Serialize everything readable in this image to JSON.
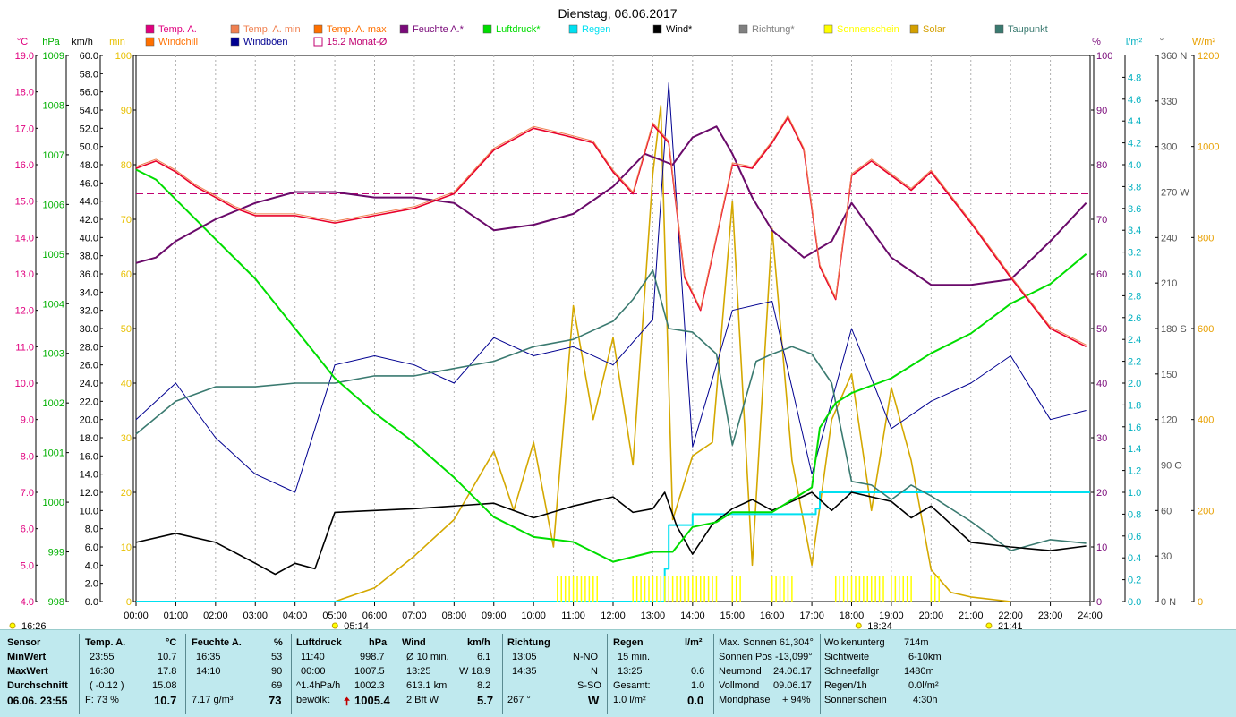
{
  "chart_data": {
    "type": "line",
    "title": "Dienstag, 06.06.2017",
    "x_ticks": [
      "00:00",
      "01:00",
      "02:00",
      "03:00",
      "04:00",
      "05:00",
      "06:00",
      "07:00",
      "08:00",
      "09:00",
      "10:00",
      "11:00",
      "12:00",
      "13:00",
      "14:00",
      "15:00",
      "16:00",
      "17:00",
      "18:00",
      "19:00",
      "20:00",
      "21:00",
      "22:00",
      "23:00",
      "24:00"
    ],
    "axes": {
      "temp_c": {
        "label": "°C",
        "color": "#e0007f",
        "range": [
          4.0,
          19.0
        ],
        "ticks": [
          "19.0",
          "18.0",
          "17.0",
          "16.0",
          "15.0",
          "14.0",
          "13.0",
          "12.0",
          "11.0",
          "10.0",
          "9.0",
          "8.0",
          "7.0",
          "6.0",
          "5.0",
          "4.0"
        ]
      },
      "pressure_hpa": {
        "label": "hPa",
        "color": "#00b000",
        "range": [
          998,
          1009
        ],
        "ticks": [
          "1009",
          "1008",
          "1007",
          "1006",
          "1005",
          "1004",
          "1003",
          "1002",
          "1001",
          "1000",
          "999",
          "998"
        ]
      },
      "wind_kmh": {
        "label": "km/h",
        "color": "#000000",
        "range": [
          0,
          60
        ],
        "ticks": [
          "60.0",
          "58.0",
          "56.0",
          "54.0",
          "52.0",
          "50.0",
          "48.0",
          "46.0",
          "44.0",
          "42.0",
          "40.0",
          "38.0",
          "36.0",
          "34.0",
          "32.0",
          "30.0",
          "28.0",
          "26.0",
          "24.0",
          "22.0",
          "20.0",
          "18.0",
          "16.0",
          "14.0",
          "12.0",
          "10.0",
          "8.0",
          "6.0",
          "4.0",
          "2.0",
          "0.0"
        ]
      },
      "min": {
        "label": "min",
        "color": "#e8c000",
        "range": [
          0,
          100
        ],
        "ticks": [
          "100",
          "90",
          "80",
          "70",
          "60",
          "50",
          "40",
          "30",
          "20",
          "10",
          "0"
        ]
      },
      "humidity_pct": {
        "label": "%",
        "color": "#7a0a7a",
        "range": [
          0,
          100
        ],
        "ticks": [
          "100",
          "90",
          "80",
          "70",
          "60",
          "50",
          "40",
          "30",
          "20",
          "10",
          "0"
        ]
      },
      "rain_lm2": {
        "label": "l/m²",
        "color": "#00b0c0",
        "range": [
          0,
          5.0
        ],
        "ticks": [
          "4.8",
          "4.6",
          "4.4",
          "4.2",
          "4.0",
          "3.8",
          "3.6",
          "3.4",
          "3.2",
          "3.0",
          "2.8",
          "2.6",
          "2.4",
          "2.2",
          "2.0",
          "1.8",
          "1.6",
          "1.4",
          "1.2",
          "1.0",
          "0.8",
          "0.6",
          "0.4",
          "0.2",
          "0.0"
        ]
      },
      "direction_deg": {
        "label": "°",
        "color": "#555555",
        "range": [
          0,
          360
        ],
        "ticks": [
          "360 N",
          "330",
          "300",
          "270 W",
          "240",
          "210",
          "180 S",
          "150",
          "120",
          "90 O",
          "60",
          "30",
          "0 N"
        ]
      },
      "solar_wm2": {
        "label": "W/m²",
        "color": "#e8a000",
        "range": [
          0,
          1200
        ],
        "ticks": [
          "1200",
          "1000",
          "800",
          "600",
          "400",
          "200",
          "0"
        ]
      }
    },
    "legend": [
      {
        "name": "Temp. A.",
        "color": "#e0007f",
        "style": "fill"
      },
      {
        "name": "Temp. A. min",
        "color": "#f08050",
        "style": "fill"
      },
      {
        "name": "Temp. A. max",
        "color": "#ff7000",
        "style": "fill"
      },
      {
        "name": "Feuchte A.*",
        "color": "#7a0a7a",
        "style": "fill"
      },
      {
        "name": "Luftdruck*",
        "color": "#00dd00",
        "style": "fill"
      },
      {
        "name": "Regen",
        "color": "#00e0f0",
        "style": "fill"
      },
      {
        "name": "Wind*",
        "color": "#000000",
        "style": "fill"
      },
      {
        "name": "Richtung*",
        "color": "#808080",
        "style": "fill"
      },
      {
        "name": "Sonnenschein",
        "color": "#ffff00",
        "style": "fill"
      },
      {
        "name": "Solar",
        "color": "#d4a000",
        "style": "fill"
      },
      {
        "name": "Taupunkt",
        "color": "#3a7a70",
        "style": "fill"
      },
      {
        "name": "Windchill",
        "color": "#ff7000",
        "style": "fill"
      },
      {
        "name": "Windböen",
        "color": "#000090",
        "style": "fill"
      },
      {
        "name": "15.2 Monat-Ø",
        "color": "#c00070",
        "style": "hollow"
      }
    ],
    "reference_lines": [
      {
        "name": "15.2 Monat-Ø",
        "value": 15.2,
        "unit": "°C"
      }
    ],
    "series": [
      {
        "name": "Temp. A.",
        "unit": "°C",
        "x": [
          0,
          0.5,
          1,
          1.5,
          2,
          2.5,
          3,
          4,
          5,
          6,
          7,
          8,
          9,
          10,
          10.8,
          11.5,
          12,
          12.5,
          13,
          13.4,
          13.8,
          14.2,
          14.6,
          15,
          15.5,
          16,
          16.4,
          16.8,
          17.2,
          17.6,
          18,
          18.5,
          19,
          19.5,
          20,
          21,
          22,
          23,
          23.9
        ],
        "values": [
          15.9,
          16.1,
          15.8,
          15.4,
          15.1,
          14.8,
          14.6,
          14.6,
          14.4,
          14.6,
          14.8,
          15.2,
          16.4,
          17.0,
          16.8,
          16.6,
          15.8,
          15.2,
          17.1,
          16.6,
          12.9,
          12.0,
          14.0,
          16.0,
          15.9,
          16.6,
          17.3,
          16.4,
          13.2,
          12.3,
          15.7,
          16.1,
          15.7,
          15.3,
          15.8,
          14.4,
          12.9,
          11.5,
          11.0
        ]
      },
      {
        "name": "Feuchte A.*",
        "unit": "%",
        "x": [
          0,
          0.5,
          1,
          2,
          3,
          4,
          5,
          6,
          7,
          8,
          9,
          10,
          11,
          12,
          12.8,
          13.5,
          14,
          14.6,
          15,
          15.5,
          16,
          16.8,
          17.5,
          18,
          19,
          20,
          21,
          22,
          23,
          23.9
        ],
        "values": [
          62,
          63,
          66,
          70,
          73,
          75,
          75,
          74,
          74,
          73,
          68,
          69,
          71,
          76,
          82,
          80,
          85,
          87,
          82,
          74,
          68,
          63,
          66,
          73,
          63,
          58,
          58,
          59,
          66,
          73
        ]
      },
      {
        "name": "Luftdruck*",
        "unit": "hPa",
        "x": [
          0,
          0.5,
          1,
          2,
          3,
          4,
          5,
          6,
          7,
          8,
          9,
          10,
          11,
          12,
          13,
          13.5,
          14,
          14.6,
          15,
          16,
          17,
          17.2,
          17.6,
          18,
          19,
          20,
          21,
          22,
          23,
          23.9
        ],
        "values": [
          1006.7,
          1006.5,
          1006.1,
          1005.3,
          1004.5,
          1003.5,
          1002.5,
          1001.8,
          1001.2,
          1000.5,
          999.7,
          999.3,
          999.2,
          998.8,
          999.0,
          999.0,
          999.5,
          999.6,
          999.8,
          999.8,
          1000.3,
          1001.5,
          1002.0,
          1002.2,
          1002.5,
          1003.0,
          1003.4,
          1004.0,
          1004.4,
          1005.0
        ]
      },
      {
        "name": "Wind*",
        "unit": "km/h",
        "x": [
          0,
          1,
          2,
          3,
          3.5,
          4,
          4.5,
          5,
          6,
          7,
          8,
          9,
          10,
          11,
          12,
          12.5,
          13,
          13.3,
          13.6,
          14,
          14.5,
          15,
          15.5,
          16,
          16.5,
          17,
          17.5,
          18,
          19,
          19.5,
          20,
          21,
          22,
          23,
          23.9
        ],
        "values": [
          6.5,
          7.5,
          6.5,
          4.2,
          3.0,
          4.2,
          3.6,
          9.8,
          10.0,
          10.2,
          10.5,
          10.8,
          9.2,
          10.5,
          11.5,
          9.8,
          10.2,
          12.0,
          8.3,
          5.2,
          8.5,
          10.2,
          11.2,
          10.0,
          11.0,
          12.0,
          10.0,
          12.0,
          11.0,
          9.2,
          10.5,
          6.5,
          6.0,
          5.6,
          6.1
        ]
      },
      {
        "name": "Taupunkt",
        "unit": "°C",
        "x": [
          0,
          1,
          2,
          3,
          4,
          5,
          6,
          7,
          8,
          9,
          10,
          11,
          12,
          12.5,
          13,
          13.4,
          14,
          14.6,
          15,
          15.6,
          16,
          16.5,
          17,
          17.5,
          18,
          18.5,
          19,
          19.5,
          20,
          21,
          22,
          23,
          23.9
        ],
        "values": [
          8.6,
          9.5,
          9.9,
          9.9,
          10.0,
          10.0,
          10.2,
          10.2,
          10.4,
          10.6,
          11.0,
          11.2,
          11.7,
          12.3,
          13.1,
          11.5,
          11.4,
          10.8,
          8.3,
          10.6,
          10.8,
          11.0,
          10.8,
          10.0,
          7.3,
          7.2,
          6.8,
          7.2,
          6.9,
          6.2,
          5.4,
          5.7,
          5.6
        ]
      },
      {
        "name": "Windböen",
        "unit": "km/h",
        "x": [
          0,
          1,
          2,
          3,
          4,
          5,
          6,
          7,
          8,
          9,
          10,
          11,
          12,
          13,
          13.4,
          14,
          15,
          16,
          17,
          18,
          19,
          20,
          21,
          22,
          23,
          23.9
        ],
        "values": [
          20,
          24,
          18,
          14,
          12,
          26,
          27,
          26,
          24,
          29,
          27,
          28,
          26,
          31,
          57,
          17,
          32,
          33,
          14,
          30,
          19,
          22,
          24,
          27,
          20,
          21
        ]
      },
      {
        "name": "Solar",
        "unit": "W/m²",
        "x": [
          0,
          5,
          6,
          7,
          8,
          9,
          9.5,
          10,
          10.5,
          11,
          11.5,
          12,
          12.5,
          13,
          13.2,
          13.5,
          14,
          14.5,
          15,
          15.5,
          16,
          16.5,
          17,
          17.5,
          18,
          18.5,
          19,
          19.5,
          20,
          20.5,
          21,
          22
        ],
        "values": [
          0,
          0,
          30,
          100,
          180,
          330,
          200,
          350,
          120,
          650,
          400,
          580,
          300,
          940,
          1090,
          180,
          320,
          350,
          880,
          80,
          820,
          310,
          80,
          400,
          500,
          200,
          470,
          310,
          70,
          20,
          10,
          0
        ]
      },
      {
        "name": "Regen",
        "unit": "l/m²",
        "x": [
          0,
          13.2,
          13.3,
          13.4,
          14.0,
          17.0,
          17.1,
          17.2,
          18.0,
          24.0
        ],
        "values": [
          0,
          0,
          0.3,
          0.7,
          0.8,
          0.8,
          0.85,
          1.0,
          1.0,
          1.0
        ]
      }
    ],
    "markers": [
      {
        "label": "05:14",
        "time": 5.23
      },
      {
        "label": "18:24",
        "time": 18.4
      },
      {
        "label": "21:41",
        "time": 21.68
      },
      {
        "label": "16:26",
        "time": 16.43
      }
    ]
  },
  "panel": {
    "headers": {
      "sensor": "Sensor",
      "temp": "Temp. A.",
      "temp_unit": "°C",
      "feuchte": "Feuchte A.",
      "feuchte_unit": "%",
      "luftdruck": "Luftdruck",
      "luftdruck_unit": "hPa",
      "wind": "Wind",
      "wind_unit": "km/h",
      "richtung": "Richtung",
      "regen": "Regen",
      "regen_unit": "l/m²"
    },
    "rows": {
      "min": "MinWert",
      "max": "MaxWert",
      "avg": "Durchschnitt",
      "now": "06.06. 23:55"
    },
    "temp": {
      "min_time": "23:55",
      "min_val": "10.7",
      "max_time": "16:30",
      "max_val": "17.8",
      "avg_time": "( -0.12 )",
      "avg_val": "15.08",
      "now_label": "F: 73 %",
      "now_val": "10.7"
    },
    "feuchte": {
      "min_time": "16:35",
      "min_val": "53",
      "max_time": "14:10",
      "max_val": "90",
      "avg_val": "69",
      "now_label": "7.17 g/m³",
      "now_val": "73"
    },
    "luftdruck": {
      "min_time": "11:40",
      "min_val": "998.7",
      "max_time": "00:00",
      "max_val": "1007.5",
      "avg_time": "^1.4hPa/h",
      "avg_val": "1002.3",
      "now_label": "bewölkt",
      "now_arrow": "🠅",
      "now_val": "1005.4"
    },
    "wind": {
      "min_label": "Ø 10 min.",
      "min_val": "6.1",
      "max_time": "13:25",
      "max_val": "W 18.9",
      "avg_label": "613.1 km",
      "avg_val": "8.2",
      "now_label": "2 Bft W",
      "now_val": "5.7"
    },
    "richtung": {
      "min_time": "13:05",
      "min_val": "N-NO",
      "max_time": "14:35",
      "max_val": "N",
      "avg_val": "S-SO",
      "now_label": "267 °",
      "now_val": "W"
    },
    "regen": {
      "r1_label": "15 min.",
      "r2_time": "13:25",
      "r2_val": "0.6",
      "r3_label": "Gesamt:",
      "r3_val": "1.0",
      "r4_label": "1.0 l/m²",
      "r4_val": "0.0"
    },
    "astro": {
      "a1": "Max. Sonnen 61,304°",
      "a2": "Sonnen Pos -13,099°",
      "a3_label": "Neumond",
      "a3_val": "24.06.17",
      "a4_label": "Vollmond",
      "a4_val": "09.06.17",
      "a5_label": "Mondphase",
      "a5_val": "+ 94%"
    },
    "misc": {
      "m1_label": "Wolkenunterg",
      "m1_val": "714m",
      "m2_label": "Sichtweite",
      "m2_val": "6-10km",
      "m3_label": "Schneefallgr",
      "m3_val": "1480m",
      "m4_label": "Regen/1h",
      "m4_val": "0.0l/m²",
      "m5_label": "Sonnenschein",
      "m5_val": "4:30h"
    }
  }
}
